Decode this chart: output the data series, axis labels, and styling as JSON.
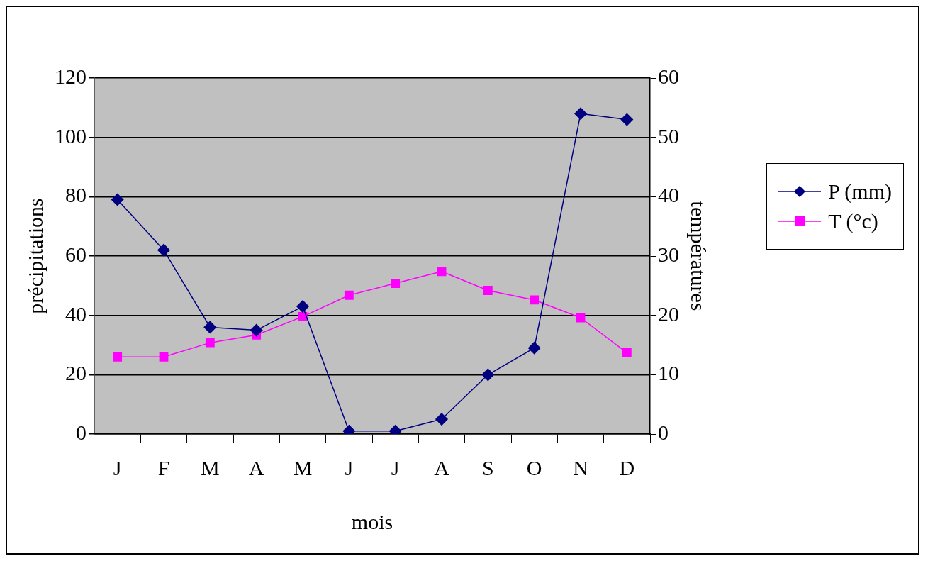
{
  "chart_data": {
    "type": "line",
    "xlabel": "mois",
    "ylabel": "précipitations",
    "y2label": "températures",
    "categories": [
      "J",
      "F",
      "M",
      "A",
      "M",
      "J",
      "J",
      "A",
      "S",
      "O",
      "N",
      "D"
    ],
    "series": [
      {
        "name": "P (mm)",
        "color": "#000080",
        "marker": "diamond",
        "values": [
          79,
          62,
          36,
          35,
          43,
          1,
          1,
          5,
          20,
          29,
          108,
          106
        ]
      },
      {
        "name": "T (°c)",
        "color": "#ff00ff",
        "marker": "square",
        "axis": "y2",
        "values": [
          13,
          13,
          15.4,
          16.7,
          19.8,
          23.4,
          25.4,
          27.4,
          24.2,
          22.6,
          19.6,
          13.7
        ]
      }
    ],
    "ylim": [
      0,
      120
    ],
    "yticks": [
      0,
      20,
      40,
      60,
      80,
      100,
      120
    ],
    "y2lim": [
      0,
      60
    ],
    "y2ticks": [
      0,
      10,
      20,
      30,
      40,
      50,
      60
    ],
    "grid": "y",
    "legend": "right",
    "line_style": "solid"
  }
}
